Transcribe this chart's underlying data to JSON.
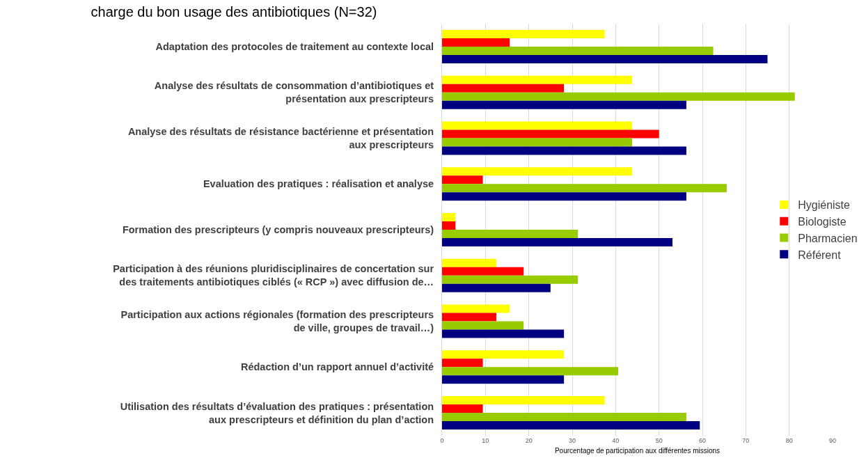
{
  "chart_data": {
    "type": "bar",
    "orientation": "horizontal",
    "title": "charge du bon usage des antibiotiques (N=32)",
    "xlabel": "Pourcentage de participation aux différentes missions",
    "categories": [
      "Adaptation des protocoles de traitement au contexte local",
      "Analyse des résultats de consommation d’antibiotiques et\nprésentation aux prescripteurs",
      "Analyse des résultats de résistance bactérienne et présentation\naux prescripteurs",
      "Evaluation des pratiques : réalisation et analyse",
      "Formation des prescripteurs (y compris nouveaux prescripteurs)",
      "Participation à des réunions pluridisciplinaires de concertation sur\ndes traitements antibiotiques ciblés (« RCP ») avec diffusion de…",
      "Participation aux actions régionales (formation des prescripteurs\nde ville, groupes de travail…)",
      "Rédaction d’un rapport annuel d’activité",
      "Utilisation des résultats d’évaluation des pratiques : présentation\naux prescripteurs et définition du plan d’action"
    ],
    "series": [
      {
        "name": "Hygiéniste",
        "color": "#ffff00",
        "values": [
          37.5,
          43.8,
          43.8,
          43.8,
          3.1,
          12.5,
          15.6,
          28.1,
          37.5
        ]
      },
      {
        "name": "Biologiste",
        "color": "#ff0000",
        "values": [
          15.6,
          28.1,
          50,
          9.4,
          3.1,
          18.8,
          12.5,
          9.4,
          9.4
        ]
      },
      {
        "name": "Pharmacien",
        "color": "#99cc00",
        "values": [
          62.5,
          81.3,
          43.8,
          65.6,
          31.3,
          31.3,
          18.8,
          40.6,
          56.3
        ]
      },
      {
        "name": "Référent",
        "color": "#000080",
        "values": [
          75,
          56.3,
          56.3,
          56.3,
          53.1,
          25,
          28.1,
          28.1,
          59.4
        ]
      }
    ],
    "xlim": [
      0,
      90
    ],
    "xticks": [
      0,
      10,
      20,
      30,
      40,
      50,
      60,
      70,
      80,
      90
    ],
    "grid": "x",
    "legend": "right"
  }
}
